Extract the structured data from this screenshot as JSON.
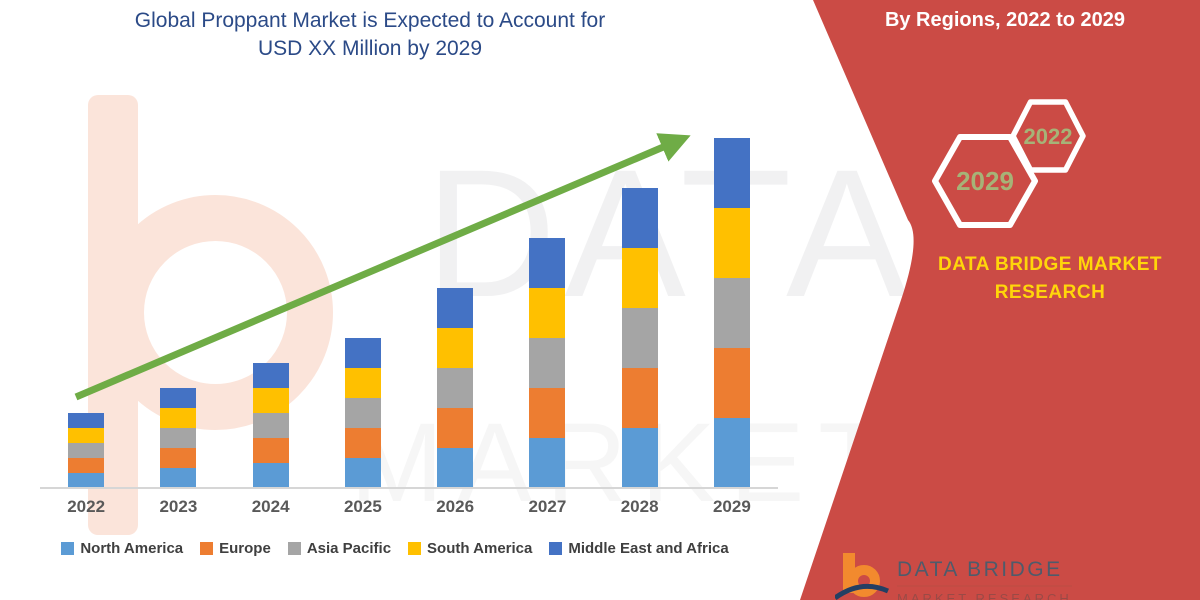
{
  "title": {
    "line1": "Global Proppant Market is Expected to Account for",
    "line2": "USD XX Million by 2029",
    "color": "#2B4A87"
  },
  "banner": {
    "background_color": "#CB4B45",
    "heading": "By Regions, 2022 to 2029",
    "hexagons": [
      {
        "label": "2022",
        "size": "small"
      },
      {
        "label": "2029",
        "size": "large"
      }
    ],
    "hexagon_label_color": "#A6B377",
    "brand_text_line1": "DATA BRIDGE MARKET",
    "brand_text_line2": "RESEARCH",
    "brand_text_color": "#FFD60A"
  },
  "footer_logo": {
    "brand": "DATA BRIDGE",
    "sub_brand": "MARKET RESEARCH"
  },
  "watermark": {
    "line1": "DATA BRIDGE",
    "line2": "MARKET RESEARCH"
  },
  "axis": {
    "label_color": "#595959",
    "line_color": "#D6D6D6"
  },
  "chart_data": {
    "type": "bar",
    "stacked": true,
    "title": "Global Proppant Market is Expected to Account for USD XX Million by 2029",
    "xlabel": "",
    "ylabel": "",
    "categories": [
      "2022",
      "2023",
      "2024",
      "2025",
      "2026",
      "2027",
      "2028",
      "2029"
    ],
    "series": [
      {
        "name": "North America",
        "color": "#5B9BD5",
        "values": [
          0.3,
          0.4,
          0.5,
          0.6,
          0.8,
          1.0,
          1.2,
          1.4
        ]
      },
      {
        "name": "Europe",
        "color": "#ED7D31",
        "values": [
          0.3,
          0.4,
          0.5,
          0.6,
          0.8,
          1.0,
          1.2,
          1.4
        ]
      },
      {
        "name": "Asia Pacific",
        "color": "#A5A5A5",
        "values": [
          0.3,
          0.4,
          0.5,
          0.6,
          0.8,
          1.0,
          1.2,
          1.4
        ]
      },
      {
        "name": "South America",
        "color": "#FFC000",
        "values": [
          0.3,
          0.4,
          0.5,
          0.6,
          0.8,
          1.0,
          1.2,
          1.4
        ]
      },
      {
        "name": "Middle East and Africa",
        "color": "#4472C4",
        "values": [
          0.3,
          0.4,
          0.5,
          0.6,
          0.8,
          1.0,
          1.2,
          1.4
        ]
      }
    ],
    "stack_totals": [
      1.5,
      2.0,
      2.5,
      3.0,
      4.0,
      5.0,
      6.0,
      7.0
    ],
    "ylim": [
      0,
      7.4
    ],
    "value_axis_visible": false,
    "data_labels_visible": false,
    "grid": false,
    "legend_position": "bottom",
    "trend_arrow": {
      "present": true,
      "color": "#6FAC46",
      "direction": "up-right"
    }
  }
}
